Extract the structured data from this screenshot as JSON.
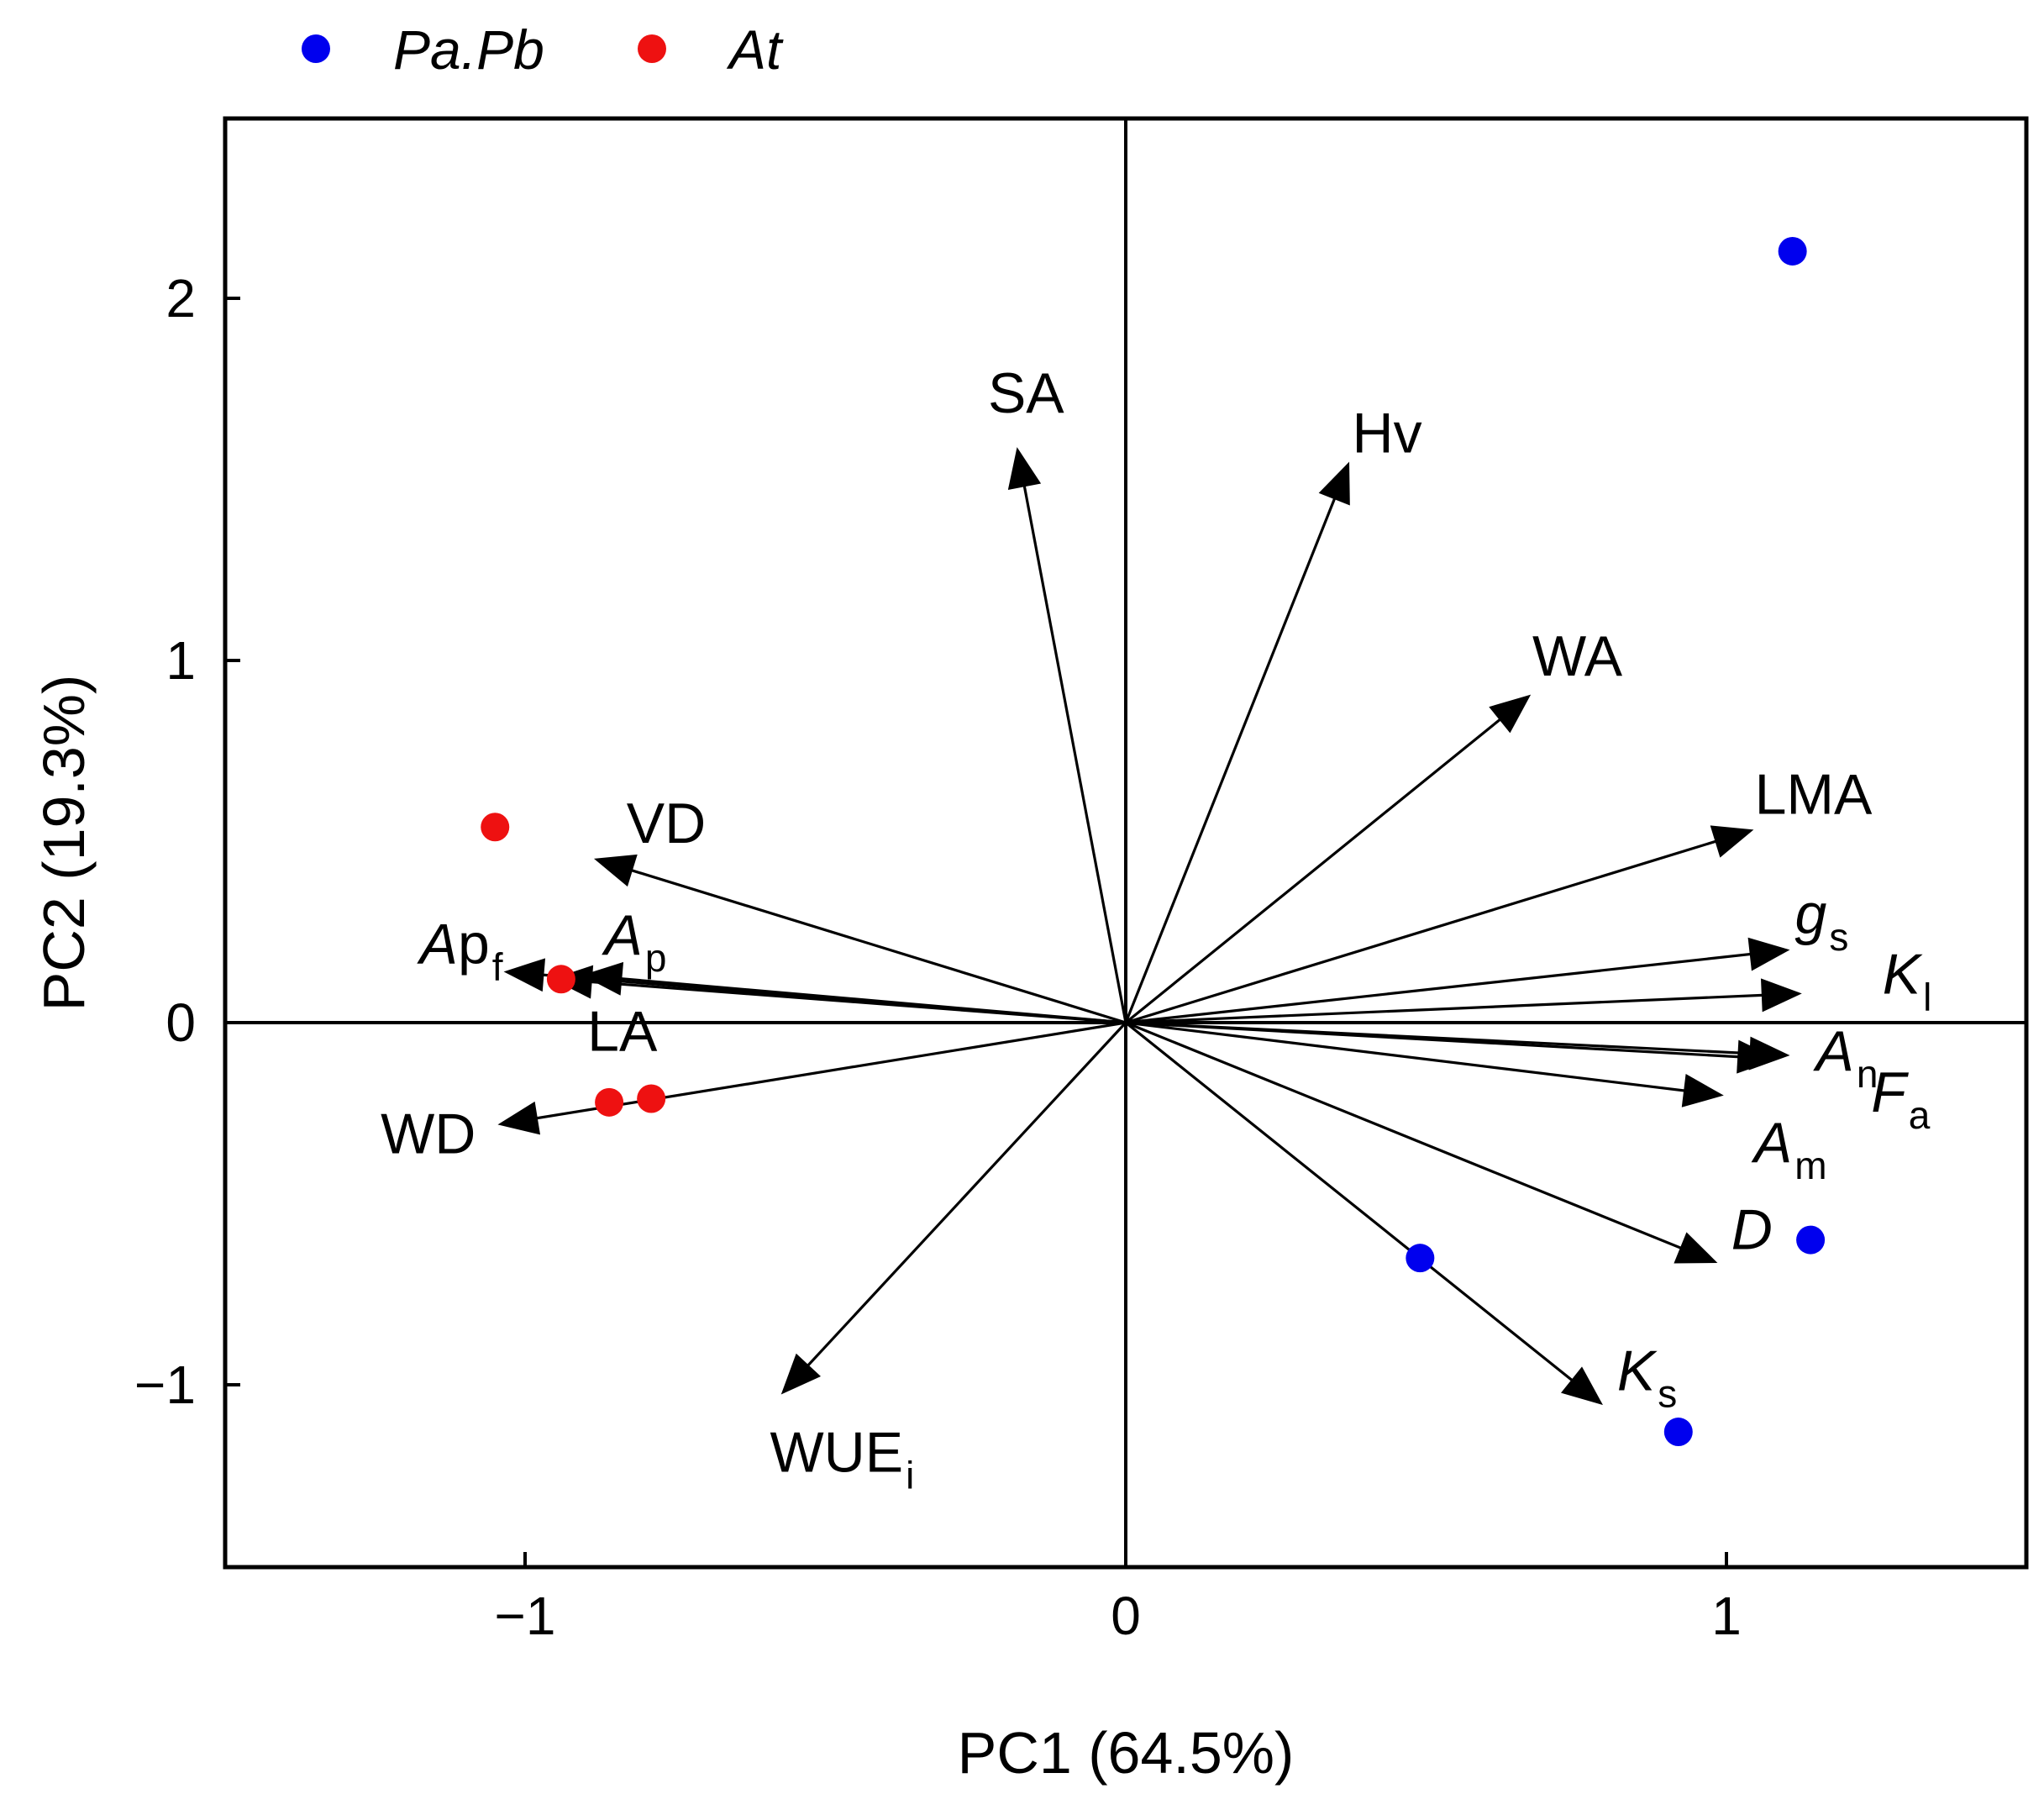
{
  "chart_data": {
    "type": "scatter",
    "subtype": "pca-biplot",
    "xlabel": "PC1 (64.5%)",
    "ylabel": "PC2 (19.3%)",
    "xlim": [
      -1.5,
      1.5
    ],
    "ylim": [
      -1.5,
      2.5
    ],
    "x_ticks": [
      {
        "value": -1,
        "label": "−1"
      },
      {
        "value": 0,
        "label": "0"
      },
      {
        "value": 1,
        "label": "1"
      }
    ],
    "y_ticks": [
      {
        "value": -1,
        "label": "−1"
      },
      {
        "value": 0,
        "label": "0"
      },
      {
        "value": 1,
        "label": "1"
      },
      {
        "value": 2,
        "label": "2"
      }
    ],
    "reference_lines": [
      {
        "axis": "x",
        "value": 0
      },
      {
        "axis": "y",
        "value": 0
      }
    ],
    "legend": {
      "position": "top-left-outside",
      "entries": [
        {
          "name": "Pa.Pb",
          "color": "#0000ee"
        },
        {
          "name": "At",
          "color": "#ee1111"
        }
      ]
    },
    "series": [
      {
        "name": "Pa.Pb",
        "color": "#0000ee",
        "points": [
          {
            "x": 1.11,
            "y": 2.13
          },
          {
            "x": 1.14,
            "y": -0.6
          },
          {
            "x": 0.49,
            "y": -0.65
          },
          {
            "x": 0.92,
            "y": -1.13
          }
        ]
      },
      {
        "name": "At",
        "color": "#ee1111",
        "points": [
          {
            "x": -1.05,
            "y": 0.54
          },
          {
            "x": -0.94,
            "y": 0.12
          },
          {
            "x": -0.86,
            "y": -0.22
          },
          {
            "x": -0.79,
            "y": -0.21
          }
        ]
      }
    ],
    "loadings": [
      {
        "id": "SA",
        "x": -0.18,
        "y": 1.58,
        "label": {
          "base": "SA",
          "sub": "",
          "italic": false
        }
      },
      {
        "id": "Hv",
        "x": 0.37,
        "y": 1.54,
        "label": {
          "base": "Hv",
          "sub": "",
          "italic": false
        }
      },
      {
        "id": "WA",
        "x": 0.67,
        "y": 0.9,
        "label": {
          "base": "WA",
          "sub": "",
          "italic": false
        }
      },
      {
        "id": "LMA",
        "x": 1.04,
        "y": 0.53,
        "label": {
          "base": "LMA",
          "sub": "",
          "italic": false
        }
      },
      {
        "id": "gs",
        "x": 1.1,
        "y": 0.2,
        "label": {
          "base": "g",
          "sub": "s",
          "italic": true
        }
      },
      {
        "id": "Kl",
        "x": 1.12,
        "y": 0.08,
        "label": {
          "base": "K",
          "sub": "l",
          "italic": true
        }
      },
      {
        "id": "An",
        "x": 1.1,
        "y": -0.09,
        "label": {
          "base": "A",
          "sub": "n",
          "italic": true
        }
      },
      {
        "id": "Fa",
        "x": 1.08,
        "y": -0.1,
        "label": {
          "base": "F",
          "sub": "a",
          "italic": true
        }
      },
      {
        "id": "Am",
        "x": 0.99,
        "y": -0.2,
        "label": {
          "base": "A",
          "sub": "m",
          "italic": true
        }
      },
      {
        "id": "D",
        "x": 0.98,
        "y": -0.66,
        "label": {
          "base": "D",
          "sub": "",
          "italic": true
        }
      },
      {
        "id": "Ks",
        "x": 0.79,
        "y": -1.05,
        "label": {
          "base": "K",
          "sub": "s",
          "italic": true
        }
      },
      {
        "id": "WUEi",
        "x": -0.57,
        "y": -1.02,
        "label": {
          "base": "WUE",
          "sub": "i",
          "italic": false
        }
      },
      {
        "id": "WD",
        "x": -1.04,
        "y": -0.28,
        "label": {
          "base": "WD",
          "sub": "",
          "italic": false
        }
      },
      {
        "id": "LA",
        "x": -0.95,
        "y": 0.12,
        "label": {
          "base": "LA",
          "sub": "",
          "italic": false
        }
      },
      {
        "id": "Apf",
        "x": -1.03,
        "y": 0.14,
        "label": {
          "base": "Ap",
          "sub": "f",
          "italic": false,
          "italic_prefix": "A"
        }
      },
      {
        "id": "Ap",
        "x": -0.9,
        "y": 0.13,
        "label": {
          "base": "A",
          "sub": "p",
          "italic": true
        }
      },
      {
        "id": "VD",
        "x": -0.88,
        "y": 0.45,
        "label": {
          "base": "VD",
          "sub": "",
          "italic": false
        }
      }
    ]
  }
}
